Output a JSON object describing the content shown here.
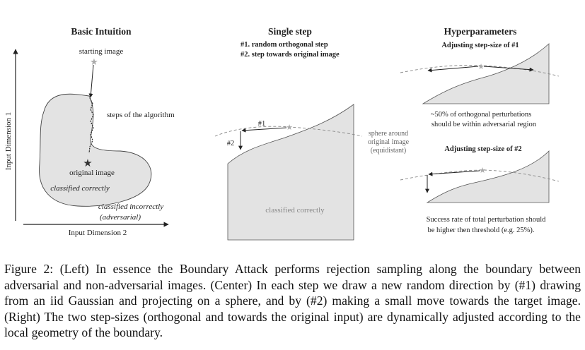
{
  "figure": {
    "left": {
      "title": "Basic Intuition",
      "ylabel": "Input Dimension 1",
      "xlabel": "Input Dimension 2",
      "starting_image": "starting image",
      "steps": "steps of the algorithm",
      "original_image": "original image",
      "classified_correctly": "classified correctly",
      "classified_incorrectly": "classified incorrectly",
      "adversarial": "(adversarial)"
    },
    "center": {
      "title": "Single step",
      "line1": "#1. random orthogonal step",
      "line2": "#2. step towards original image",
      "label1": "#1",
      "label2": "#2",
      "sphere_l1": "sphere around",
      "sphere_l2": "original image",
      "sphere_l3": "(equidistant)",
      "classified_correctly": "classified correctly"
    },
    "right": {
      "title": "Hyperparameters",
      "sub1": "Adjusting step-size of #1",
      "note1_l1": "~50% of orthogonal perturbations",
      "note1_l2": "should be within adversarial region",
      "sub2": "Adjusting step-size of #2",
      "note2_l1": "Success rate of total perturbation should",
      "note2_l2": "be higher then threshold (e.g. 25%)."
    }
  },
  "caption": "Figure 2: (Left) In essence the Boundary Attack performs rejection sampling along the boundary between adversarial and non-adversarial images. (Center) In each step we draw a new random direction by (#1) drawing from an iid Gaussian and projecting on a sphere, and by (#2) making a small move towards the target image. (Right) The two step-sizes (orthogonal and towards the original input) are dynamically adjusted according to the local geometry of the boundary."
}
